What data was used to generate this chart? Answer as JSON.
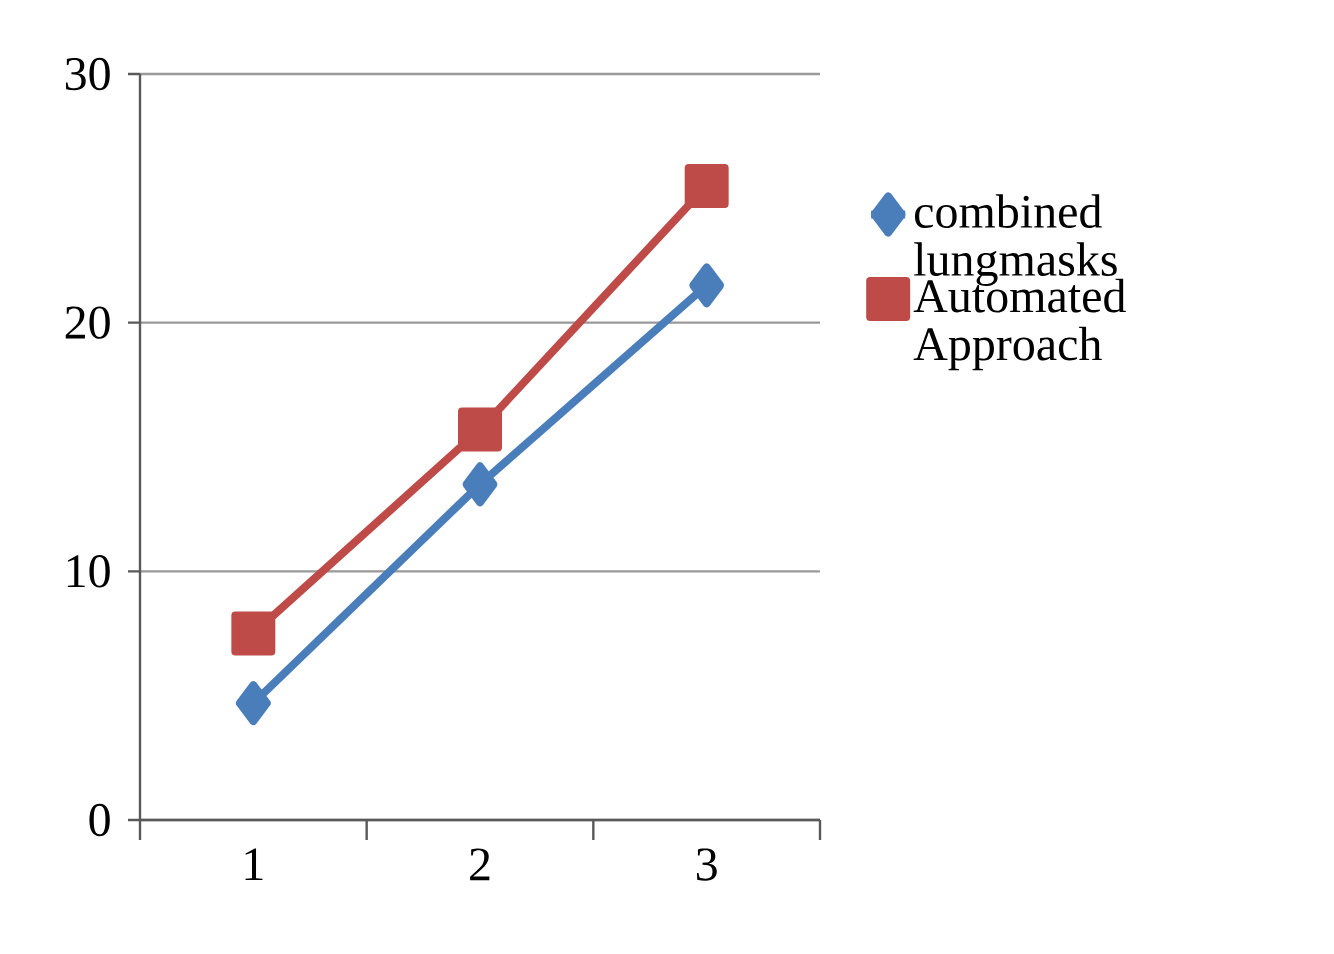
{
  "chart_data": {
    "type": "line",
    "categories": [
      "1",
      "2",
      "3"
    ],
    "series": [
      {
        "name": "combined lungmasks",
        "color": "#4a7ebb",
        "marker": "diamond",
        "values": [
          4.7,
          13.5,
          21.5
        ]
      },
      {
        "name": "Automated Approach",
        "color": "#be4b48",
        "marker": "square",
        "values": [
          7.5,
          15.7,
          25.5
        ]
      }
    ],
    "ylim": [
      0,
      30
    ],
    "yticks": [
      0,
      10,
      20,
      30
    ],
    "grid": "y",
    "legend": "right",
    "line_style": "solid"
  }
}
